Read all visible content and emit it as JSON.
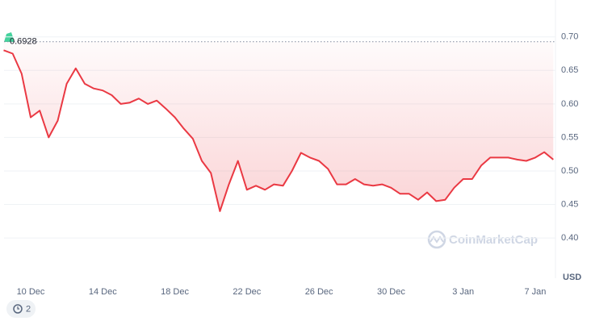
{
  "chart_data": {
    "type": "line",
    "categories": [
      null,
      null,
      null,
      "10 Dec",
      null,
      null,
      null,
      null,
      null,
      null,
      null,
      "14 Dec",
      null,
      null,
      null,
      null,
      null,
      null,
      null,
      "18 Dec",
      null,
      null,
      null,
      null,
      null,
      null,
      null,
      "22 Dec",
      null,
      null,
      null,
      null,
      null,
      null,
      null,
      "26 Dec",
      null,
      null,
      null,
      null,
      null,
      null,
      null,
      "30 Dec",
      null,
      null,
      null,
      null,
      null,
      null,
      null,
      "3 Jan",
      null,
      null,
      null,
      null,
      null,
      null,
      null,
      "7 Jan",
      null,
      null
    ],
    "values": [
      0.68,
      0.675,
      0.645,
      0.58,
      0.59,
      0.55,
      0.575,
      0.63,
      0.653,
      0.63,
      0.623,
      0.62,
      0.613,
      0.6,
      0.602,
      0.608,
      0.6,
      0.605,
      0.593,
      0.58,
      0.563,
      0.548,
      0.515,
      0.497,
      0.44,
      0.48,
      0.515,
      0.472,
      0.478,
      0.472,
      0.48,
      0.478,
      0.5,
      0.527,
      0.52,
      0.515,
      0.503,
      0.48,
      0.48,
      0.488,
      0.48,
      0.478,
      0.48,
      0.475,
      0.466,
      0.466,
      0.457,
      0.468,
      0.455,
      0.457,
      0.475,
      0.488,
      0.488,
      0.508,
      0.52,
      0.52,
      0.52,
      0.517,
      0.515,
      0.52,
      0.528,
      0.517
    ],
    "color": "#ea3943",
    "ylim": [
      0.34,
      0.755
    ],
    "yticks": [
      {
        "value": 0.4,
        "label": "0.40"
      },
      0.45,
      {
        "value": 0.5,
        "label": "0.50"
      },
      0.55,
      {
        "value": 0.6,
        "label": "0.60"
      },
      0.65,
      {
        "value": 0.7,
        "label": "0.70"
      }
    ],
    "grid": true,
    "reference": 0.6928,
    "unit": "USD",
    "watermark": "CoinMarketCap",
    "badge": "2"
  }
}
